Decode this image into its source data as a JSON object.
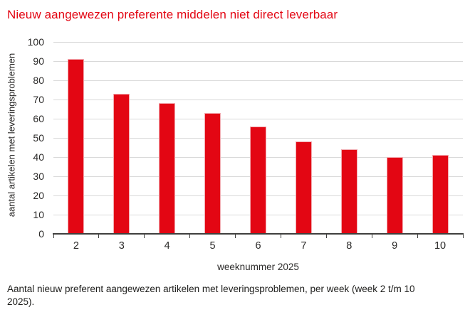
{
  "title": "Nieuw aangewezen preferente middelen niet direct leverbaar",
  "caption": "Aantal nieuw preferent aangewezen artikelen met leveringsproblemen, per week (week 2 t/m 10 2025).",
  "colors": {
    "bar": "#e30613",
    "bar_edge": "#f2a9af",
    "title": "#e30613",
    "grid": "#d9d9d9",
    "axis": "#3f3f3e",
    "text": "#2b2a29"
  },
  "chart_data": {
    "type": "bar",
    "title": "Nieuw aangewezen preferente middelen niet direct leverbaar",
    "categories": [
      "2",
      "3",
      "4",
      "5",
      "6",
      "7",
      "8",
      "9",
      "10"
    ],
    "values": [
      91,
      73,
      68,
      63,
      56,
      48,
      44,
      40,
      41
    ],
    "xlabel": "weeknummer 2025",
    "ylabel": "aantal artikelen met leveringsproblemen",
    "ylim": [
      0,
      100
    ],
    "yticks": [
      0,
      10,
      20,
      30,
      40,
      50,
      60,
      70,
      80,
      90,
      100
    ],
    "grid": true,
    "legend": false
  }
}
